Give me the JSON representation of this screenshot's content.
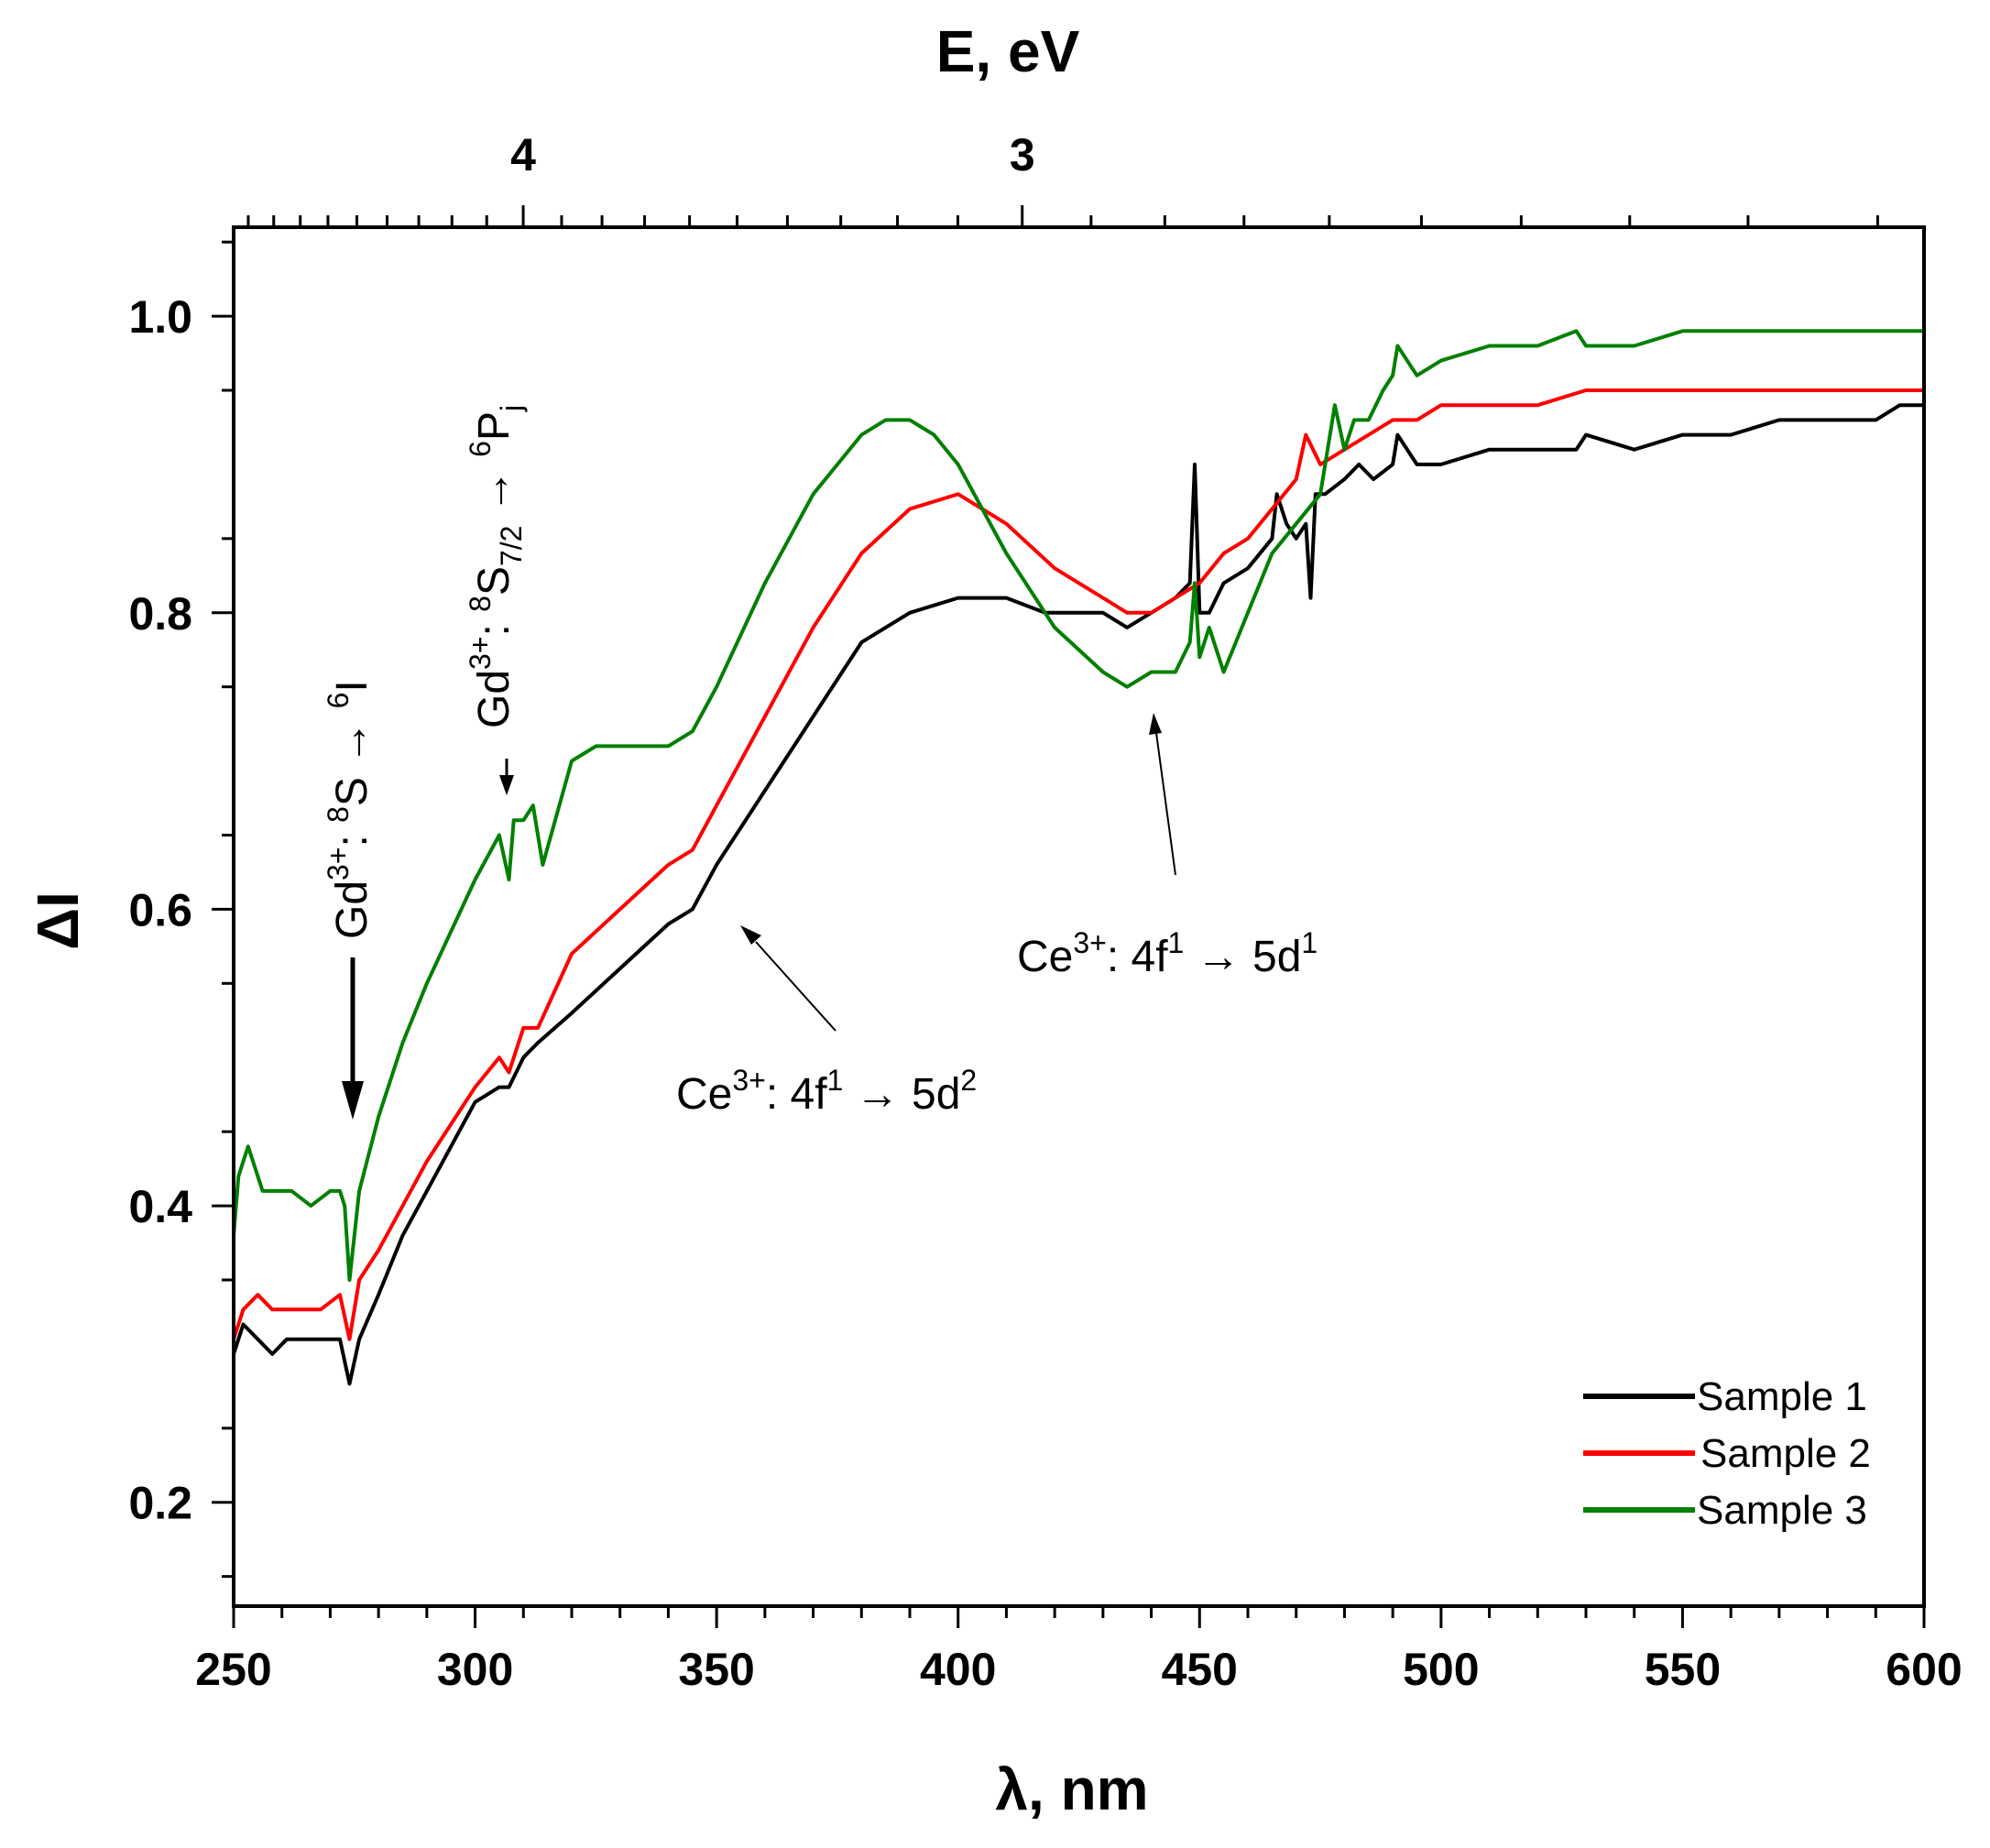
{
  "chart_data": {
    "type": "line",
    "xlabel": "λ, nm",
    "ylabel": "ΔI",
    "top_axis_label": "E, eV",
    "xlim": [
      250,
      600
    ],
    "ylim": [
      0.13,
      1.06
    ],
    "x_ticks": [
      250,
      300,
      350,
      400,
      450,
      500,
      550,
      600
    ],
    "y_ticks": [
      0.2,
      0.4,
      0.6,
      0.8,
      1.0
    ],
    "y_tick_labels": [
      "0.2",
      "0.4",
      "0.6",
      "0.8",
      "1.0"
    ],
    "top_ticks": [
      {
        "label": "4",
        "value": 4
      },
      {
        "label": "3",
        "value": 3
      }
    ],
    "legend_position": "bottom-right",
    "series": [
      {
        "name": "Sample 1",
        "color": "#000000",
        "x": [
          250,
          252,
          255,
          258,
          261,
          264,
          268,
          272,
          274,
          276,
          280,
          285,
          290,
          300,
          305,
          307,
          310,
          313,
          320,
          330,
          340,
          345,
          350,
          360,
          370,
          380,
          390,
          400,
          410,
          418,
          420,
          425,
          430,
          435,
          440,
          445,
          448,
          449,
          450,
          452,
          455,
          460,
          465,
          466,
          468,
          470,
          472,
          473,
          474,
          476,
          480,
          483,
          486,
          490,
          491,
          495,
          500,
          510,
          520,
          528,
          530,
          540,
          550,
          560,
          570,
          580,
          590,
          595,
          600
        ],
        "y": [
          0.3,
          0.32,
          0.31,
          0.3,
          0.31,
          0.31,
          0.31,
          0.31,
          0.28,
          0.31,
          0.34,
          0.38,
          0.41,
          0.47,
          0.48,
          0.48,
          0.5,
          0.51,
          0.53,
          0.56,
          0.59,
          0.6,
          0.63,
          0.68,
          0.73,
          0.78,
          0.8,
          0.81,
          0.81,
          0.8,
          0.8,
          0.8,
          0.8,
          0.79,
          0.8,
          0.81,
          0.82,
          0.9,
          0.8,
          0.8,
          0.82,
          0.83,
          0.85,
          0.88,
          0.86,
          0.85,
          0.86,
          0.81,
          0.88,
          0.88,
          0.89,
          0.9,
          0.89,
          0.9,
          0.92,
          0.9,
          0.9,
          0.91,
          0.91,
          0.91,
          0.92,
          0.91,
          0.92,
          0.92,
          0.93,
          0.93,
          0.93,
          0.94,
          0.94
        ]
      },
      {
        "name": "Sample 2",
        "color": "#ff0000",
        "x": [
          250,
          252,
          255,
          258,
          261,
          264,
          268,
          272,
          274,
          276,
          280,
          285,
          290,
          300,
          305,
          307,
          310,
          313,
          320,
          330,
          340,
          345,
          350,
          360,
          370,
          380,
          390,
          400,
          405,
          410,
          420,
          430,
          435,
          440,
          445,
          450,
          455,
          460,
          465,
          470,
          472,
          475,
          480,
          485,
          490,
          495,
          500,
          510,
          520,
          530,
          540,
          550,
          560,
          570,
          580,
          590,
          600
        ],
        "y": [
          0.31,
          0.33,
          0.34,
          0.33,
          0.33,
          0.33,
          0.33,
          0.34,
          0.31,
          0.35,
          0.37,
          0.4,
          0.43,
          0.48,
          0.5,
          0.49,
          0.52,
          0.52,
          0.57,
          0.6,
          0.63,
          0.64,
          0.67,
          0.73,
          0.79,
          0.84,
          0.87,
          0.88,
          0.87,
          0.86,
          0.83,
          0.81,
          0.8,
          0.8,
          0.81,
          0.82,
          0.84,
          0.85,
          0.87,
          0.89,
          0.92,
          0.9,
          0.91,
          0.92,
          0.93,
          0.93,
          0.94,
          0.94,
          0.94,
          0.95,
          0.95,
          0.95,
          0.95,
          0.95,
          0.95,
          0.95,
          0.95
        ]
      },
      {
        "name": "Sample 3",
        "color": "#008000",
        "x": [
          250,
          251,
          253,
          256,
          259,
          262,
          266,
          270,
          272,
          273,
          274,
          276,
          280,
          285,
          290,
          300,
          305,
          307,
          308,
          310,
          312,
          314,
          320,
          325,
          330,
          335,
          340,
          345,
          350,
          360,
          370,
          380,
          385,
          390,
          395,
          400,
          405,
          410,
          420,
          430,
          435,
          440,
          445,
          448,
          449,
          450,
          452,
          455,
          460,
          465,
          470,
          475,
          478,
          480,
          482,
          485,
          488,
          490,
          491,
          495,
          500,
          510,
          520,
          528,
          530,
          540,
          550,
          560,
          570,
          580,
          590,
          600
        ],
        "y": [
          0.38,
          0.42,
          0.44,
          0.41,
          0.41,
          0.41,
          0.4,
          0.41,
          0.41,
          0.4,
          0.35,
          0.41,
          0.46,
          0.51,
          0.55,
          0.62,
          0.65,
          0.62,
          0.66,
          0.66,
          0.67,
          0.63,
          0.7,
          0.71,
          0.71,
          0.71,
          0.71,
          0.72,
          0.75,
          0.82,
          0.88,
          0.92,
          0.93,
          0.93,
          0.92,
          0.9,
          0.87,
          0.84,
          0.79,
          0.76,
          0.75,
          0.76,
          0.76,
          0.78,
          0.82,
          0.77,
          0.79,
          0.76,
          0.8,
          0.84,
          0.86,
          0.88,
          0.94,
          0.91,
          0.93,
          0.93,
          0.95,
          0.96,
          0.98,
          0.96,
          0.97,
          0.98,
          0.98,
          0.99,
          0.98,
          0.98,
          0.99,
          0.99,
          0.99,
          0.99,
          0.99,
          0.99
        ]
      }
    ],
    "annotations": [
      {
        "id": "gd-8s-6i",
        "pre": "Gd",
        "s1": "3+",
        "mid1": ": ",
        "s2": "8",
        "mid2": "S → ",
        "s3": "6",
        "post": "I",
        "arrow_to": {
          "x": 274,
          "y": 0.42
        }
      },
      {
        "id": "gd-8s72-6pj",
        "pre": "Gd",
        "s1": "3+",
        "mid1": ": ",
        "s2": "8",
        "mid2": "S",
        "sub1": "7/2",
        "mid3": " → ",
        "s3": "6",
        "post": "P",
        "sub2": "j",
        "arrow_to": {
          "x": 307,
          "y": 0.66
        }
      },
      {
        "id": "ce-4f-5d2",
        "pre": "Ce",
        "s1": "3+",
        "mid1": ": 4f",
        "s2": "1",
        "mid2": " → 5d",
        "s3": "2",
        "arrow_to": {
          "x": 351,
          "y": 0.585
        }
      },
      {
        "id": "ce-4f-5d1",
        "pre": "Ce",
        "s1": "3+",
        "mid1": ": 4f",
        "s2": "1",
        "mid2": " → 5d",
        "s3": "1",
        "arrow_to": {
          "x": 438,
          "y": 0.755
        }
      }
    ]
  }
}
